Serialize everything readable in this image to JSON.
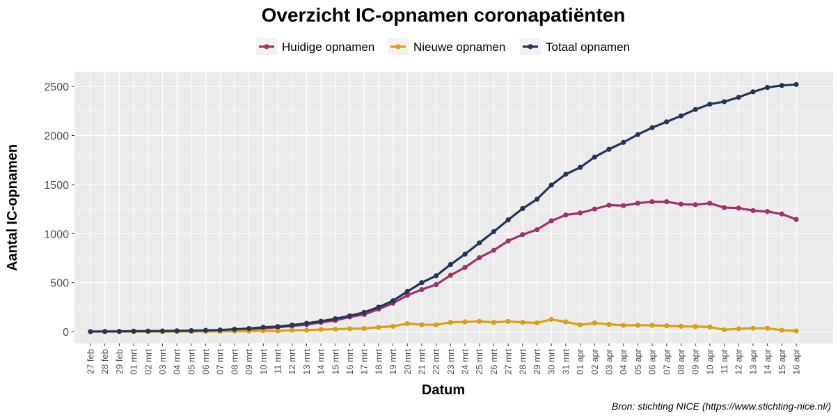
{
  "chart_data": {
    "type": "line",
    "title": "Overzicht IC-opnamen coronapatiënten",
    "xlabel": "Datum",
    "ylabel": "Aantal IC-opnamen",
    "caption": "Bron: stichting NICE (https://www.stichting-nice.nl/)",
    "ylim": [
      -120,
      2650
    ],
    "yticks": [
      0,
      500,
      1000,
      1500,
      2000,
      2500
    ],
    "grid": true,
    "legend_position": "top",
    "categories": [
      "27 feb",
      "28 feb",
      "29 feb",
      "01 mrt",
      "02 mrt",
      "03 mrt",
      "04 mrt",
      "05 mrt",
      "06 mrt",
      "07 mrt",
      "08 mrt",
      "09 mrt",
      "10 mrt",
      "11 mrt",
      "12 mrt",
      "13 mrt",
      "14 mrt",
      "15 mrt",
      "16 mrt",
      "17 mrt",
      "18 mrt",
      "19 mrt",
      "20 mrt",
      "21 mrt",
      "22 mrt",
      "23 mrt",
      "24 mrt",
      "25 mrt",
      "26 mrt",
      "27 mrt",
      "28 mrt",
      "29 mrt",
      "30 mrt",
      "31 mrt",
      "01 apr",
      "02 apr",
      "03 apr",
      "04 apr",
      "05 apr",
      "06 apr",
      "07 apr",
      "08 apr",
      "09 apr",
      "10 apr",
      "11 apr",
      "12 apr",
      "13 apr",
      "14 apr",
      "15 apr",
      "16 apr"
    ],
    "series": [
      {
        "name": "Huidige opnamen",
        "color": "#a2306b",
        "values": [
          1,
          1,
          2,
          2,
          3,
          4,
          6,
          8,
          10,
          12,
          20,
          26,
          35,
          45,
          58,
          72,
          95,
          115,
          150,
          175,
          230,
          290,
          370,
          430,
          480,
          575,
          655,
          755,
          830,
          925,
          990,
          1040,
          1130,
          1190,
          1210,
          1250,
          1290,
          1285,
          1310,
          1325,
          1325,
          1300,
          1295,
          1310,
          1265,
          1260,
          1235,
          1225,
          1200,
          1145
        ]
      },
      {
        "name": "Nieuwe opnamen",
        "color": "#d9a013",
        "values": [
          1,
          1,
          1,
          1,
          1,
          1,
          2,
          2,
          3,
          3,
          6,
          6,
          10,
          8,
          15,
          15,
          22,
          25,
          30,
          33,
          45,
          55,
          82,
          72,
          70,
          95,
          100,
          105,
          95,
          105,
          95,
          90,
          125,
          100,
          70,
          88,
          75,
          65,
          65,
          65,
          60,
          55,
          52,
          48,
          20,
          30,
          35,
          35,
          15,
          8
        ]
      },
      {
        "name": "Totaal opnamen",
        "color": "#253457",
        "values": [
          1,
          2,
          3,
          5,
          6,
          7,
          9,
          11,
          14,
          17,
          25,
          32,
          45,
          52,
          68,
          85,
          107,
          132,
          162,
          197,
          250,
          315,
          410,
          500,
          570,
          685,
          790,
          905,
          1020,
          1140,
          1255,
          1350,
          1495,
          1605,
          1675,
          1780,
          1860,
          1930,
          2010,
          2080,
          2140,
          2200,
          2265,
          2320,
          2345,
          2390,
          2445,
          2490,
          2510,
          2520
        ]
      }
    ]
  }
}
